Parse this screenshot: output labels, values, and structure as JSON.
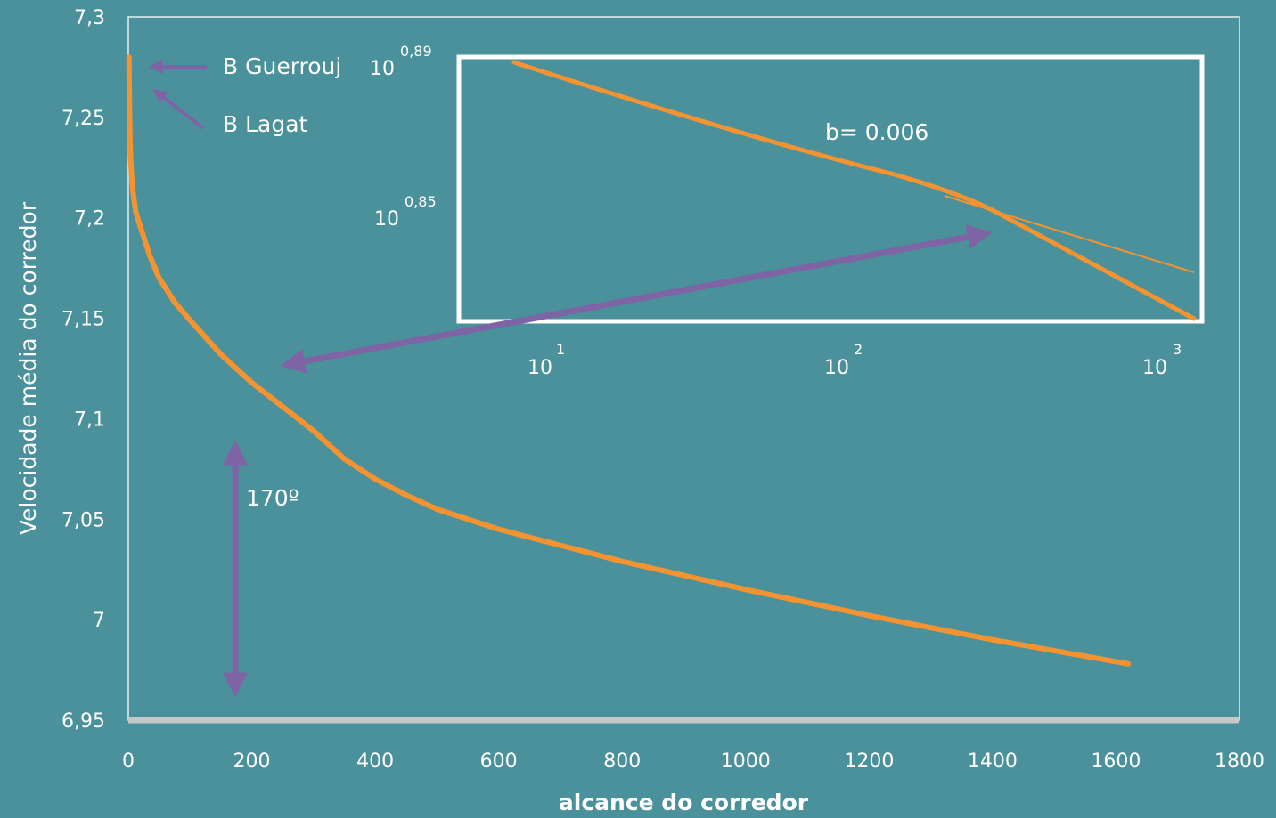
{
  "chart_data": {
    "type": "line",
    "xlabel": "alcance do corredor",
    "ylabel": "Velocidade média do corredor",
    "xlim": [
      0,
      1800
    ],
    "ylim": [
      6.95,
      7.3
    ],
    "x_ticks": [
      "0",
      "200",
      "400",
      "600",
      "800",
      "1000",
      "1200",
      "1400",
      "1600",
      "1800"
    ],
    "y_ticks": [
      "6,95",
      "7",
      "7,05",
      "7,1",
      "7,15",
      "7,2",
      "7,25",
      "7,3"
    ],
    "series": [
      {
        "x": [
          1,
          2,
          3,
          5,
          8,
          12,
          20,
          35,
          50,
          75,
          100,
          150,
          200,
          250,
          300,
          350,
          400,
          450,
          500,
          600,
          700,
          800,
          900,
          1000,
          1200,
          1400,
          1620
        ],
        "y": [
          7.28,
          7.25,
          7.235,
          7.222,
          7.212,
          7.203,
          7.195,
          7.181,
          7.17,
          7.158,
          7.149,
          7.132,
          7.118,
          7.106,
          7.094,
          7.08,
          7.07,
          7.062,
          7.055,
          7.045,
          7.037,
          7.029,
          7.022,
          7.015,
          7.002,
          6.99,
          6.978
        ],
        "color": "#f59331"
      }
    ],
    "annotations": {
      "record_1": "B Guerrouj",
      "record_2": "B Lagat",
      "angle": "170º",
      "slope": "b= 0.006"
    },
    "inset": {
      "x_ticks": [
        {
          "base": "10",
          "exp": "1"
        },
        {
          "base": "10",
          "exp": "2"
        },
        {
          "base": "10",
          "exp": "3"
        }
      ],
      "y_ticks": [
        {
          "base": "10",
          "exp": "0,89"
        },
        {
          "base": "10",
          "exp": "0,85"
        }
      ]
    },
    "colors": {
      "background": "#4a919b",
      "line": "#f59331",
      "arrow": "#7e64a5",
      "frame": "#ffffff",
      "baseline": "#c7c7c7"
    }
  }
}
